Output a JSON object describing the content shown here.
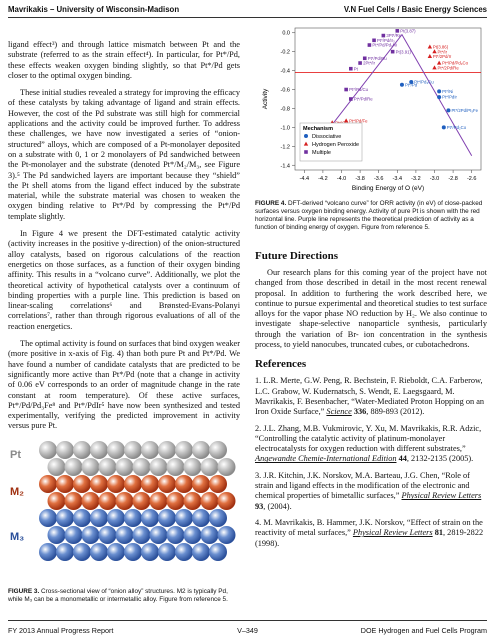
{
  "header": {
    "left": "Mavrikakis – University of Wisconsin-Madison",
    "right": "V.N Fuel Cells / Basic Energy Sciences"
  },
  "left_column": {
    "paragraphs": [
      "ligand effect³) and through lattice mismatch between Pt and the substrate (referred to as the strain effect⁴). In particular, for Pt*/Pd, these effects weaken oxygen binding slightly, so that Pt*/Pd gets closer to the optimal oxygen binding.",
      "These initial studies revealed a strategy for improving the efficacy of these catalysts by taking advantage of ligand and strain effects. However, the cost of the Pd substrate was still high for commercial applications and the activity could be improved further. To address these challenges, we have now investigated a series of “onion-structured” alloys, which are composed of a Pt-monolayer deposited on a substrate with 0, 1 or 2 monolayers of Pd sandwiched between the Pt-monolayer and the substrate (denoted Pt*/M₂/M₃, see Figure 3).⁵ The Pd sandwiched layers are important because they “shield” the Pt shell atoms from the ligand effect induced by the substrate material, while the substrate material was chosen to weaken the oxygen binding relative to Pt*/Pd by compressing the Pt*/Pd template slightly.",
      "In Figure 4 we present the DFT-estimated catalytic activity (activity increases in the positive y-direction) of the onion-structured alloy catalysts, based on rigorous calculations of the reaction energetics on those surfaces, as a function of their oxygen binding affinity. This results in a “volcano curve”. Additionally, we plot the theoretical activity of hypothetical catalysts over a continuum of binding properties with a purple line. This prediction is based on linear-scaling correlations⁶ and Brønsted-Evans-Polanyi correlations⁷, rather than through rigorous evaluations of all of the reaction energetics.",
      "The optimal activity is found on surfaces that bind oxygen weaker (more positive in x-axis of Fig. 4) than both pure Pt and Pt*/Pd. We have found a number of candidate catalysts that are predicted to be significantly more active than Pt*/Pd (note that a change in activity of 0.06 eV corresponds to an order of magnitude change in the rate constant at room temperature). Of these active surfaces, Pt*/Pd/Pd₃Fe⁸ and Pt*/PdIr⁵ have now been synthesized and tested experimentally, verifying the predicted improvement in activity versus pure Pt."
    ]
  },
  "figure3": {
    "layers": [
      "Pt",
      "M₂",
      "M₃"
    ],
    "caption_label": "FIGURE 3.",
    "caption": "Cross-sectional view of “onion alloy” structures. M2 is typically Pd, while M₃ can be a monometallic or intermetallic alloy. Figure from reference 5."
  },
  "figure4": {
    "chart_data": {
      "type": "scatter",
      "y_label": "Activity",
      "x_label": "Binding Energy of O (eV)",
      "xlim": [
        -4.5,
        -2.5
      ],
      "ylim": [
        -1.45,
        0.05
      ],
      "xticks": [
        -4.4,
        -4.2,
        {
          "value": -4,
          "label": "-4.0"
        },
        -3.8,
        -3.6,
        -3.4,
        -3.2,
        {
          "value": -3,
          "label": "-3.0"
        },
        -2.8,
        -2.6
      ],
      "yticks": [
        {
          "value": 0,
          "label": "0.0"
        },
        -0.2,
        -0.4,
        -0.6,
        -0.8,
        {
          "value": -1,
          "label": "-1.0"
        },
        -1.2,
        -1.4
      ],
      "legend_title": "Mechanism",
      "series": [
        {
          "name": "Dissociative",
          "color": "#1f5fbf",
          "marker": "circle",
          "labels": [
            "Pt*/Pd",
            "Pt*/Ni",
            "Pt*/PdIr",
            "Pt*/Pd₃Cu",
            "Pt*/2Pd/Pt₃Fe",
            "Pt*/Pd₂Co"
          ],
          "x": [
            -3.35,
            -2.95,
            -2.95,
            -3.25,
            -2.85,
            -2.9
          ],
          "y": [
            -0.55,
            -0.62,
            -0.68,
            -0.52,
            -0.82,
            -1.0
          ]
        },
        {
          "name": "Hydrogen Peroxide",
          "color": "#d62020",
          "marker": "triangle",
          "labels": [
            "Pt(3.86)",
            "Pt*/Ir",
            "Pt*/2Pd/Ir",
            "Pt*/Pd/Pd₃Co",
            "Pt*/2Pd/Re",
            "Pt*/Cu",
            "Pt*/Pd/Fe"
          ],
          "x": [
            -3.05,
            -3.0,
            -3.05,
            -2.95,
            -3.0,
            -4.1,
            -3.95
          ],
          "y": [
            -0.15,
            -0.2,
            -0.25,
            -0.32,
            -0.37,
            -0.95,
            -0.93
          ]
        },
        {
          "name": "Multiple",
          "color": "#7030a0",
          "marker": "square",
          "labels": [
            "Pt(3.87)",
            "3Pt*/Re",
            "Pt*/Pd/Ir₃",
            "Pt*/Pd/Pd₃Ni",
            "Pt(3.91)",
            "Pt*/Pd/Ru",
            "2Pt*/Ir",
            "Pt",
            "Pt*/Pd/Cu",
            "Pt*/Pd/Re"
          ],
          "x": [
            -3.4,
            -3.55,
            -3.65,
            -3.7,
            -3.45,
            -3.75,
            -3.8,
            -3.9,
            -3.95,
            -3.9
          ],
          "y": [
            0.02,
            -0.03,
            -0.08,
            -0.13,
            -0.2,
            -0.27,
            -0.32,
            -0.38,
            -0.6,
            -0.7
          ]
        }
      ],
      "volcano": {
        "color": "#8040b0",
        "x": [
          -4.4,
          -3.35,
          -2.6
        ],
        "y": [
          -1.35,
          -0.02,
          -1.3
        ]
      },
      "pt_activity": -0.42,
      "pt_line_color": "#e00000"
    },
    "caption_label": "FIGURE 4.",
    "caption": "DFT-derived “volcano curve” for ORR activity (in eV) of close-packed surfaces versus oxygen binding energy. Activity of pure Pt is shown with the red horizontal line. Purple line represents the theoretical prediction of activity as a function of binding energy of oxygen. Figure from reference 5."
  },
  "future_directions": {
    "heading": "Future Directions",
    "paragraph": "Our research plans for this coming year of the project have not changed from those described in detail in the most recent renewal proposal. In addition to furthering the work described here, we continue to pursue experimental and theoretical studies to test surface alloys for the vapor phase NO reduction by H₂. We also continue to investigate shape-selective nanoparticle synthesis, particularly through the variation of Br- ion concentration in the synthesis process, to yield nanocubes, truncated cubes, or cubotachedrons."
  },
  "references": {
    "heading": "References",
    "items": [
      {
        "number": "1.",
        "text": "L.R. Merte, G.W. Peng, R. Bechstein, F. Rieboldt, C.A. Farberow, L.C. Grabow, W. Kudernatsch, S. Wendt, E. Laegsgaard, M. Mavrikakis, F. Besenbacher, “Water-Mediated Proton Hopping on an Iron Oxide Surface,”",
        "journal": "Science",
        "volume": "336",
        "rest": ", 889-893 (2012)."
      },
      {
        "number": "2.",
        "text": "J.L. Zhang, M.B. Vukmirovic, Y. Xu, M. Mavrikakis, R.R. Adzic, “Controlling the catalytic activity of platinum-monolayer electrocatalysts for oxygen reduction with different substrates,”",
        "journal": "Angewandte Chemie-International Edition",
        "volume": "44",
        "rest": ", 2132-2135 (2005)."
      },
      {
        "number": "3.",
        "text": "J.R. Kitchin, J.K. Norskov, M.A. Barteau, J.G. Chen, “Role of strain and ligand effects in the modification of the electronic and chemical properties of bimetallic surfaces,”",
        "journal": "Physical Review Letters",
        "volume": "93",
        "rest": ", (2004)."
      },
      {
        "number": "4.",
        "text": "M. Mavrikakis, B. Hammer, J.K. Norskov, “Effect of strain on the reactivity of metal surfaces,”",
        "journal": "Physical Review Letters",
        "volume": "81",
        "rest": ", 2819-2822 (1998)."
      }
    ]
  },
  "footer": {
    "left": "FY 2013 Annual Progress Report",
    "center": "V–349",
    "right": "DOE Hydrogen and Fuel Cells Program"
  }
}
